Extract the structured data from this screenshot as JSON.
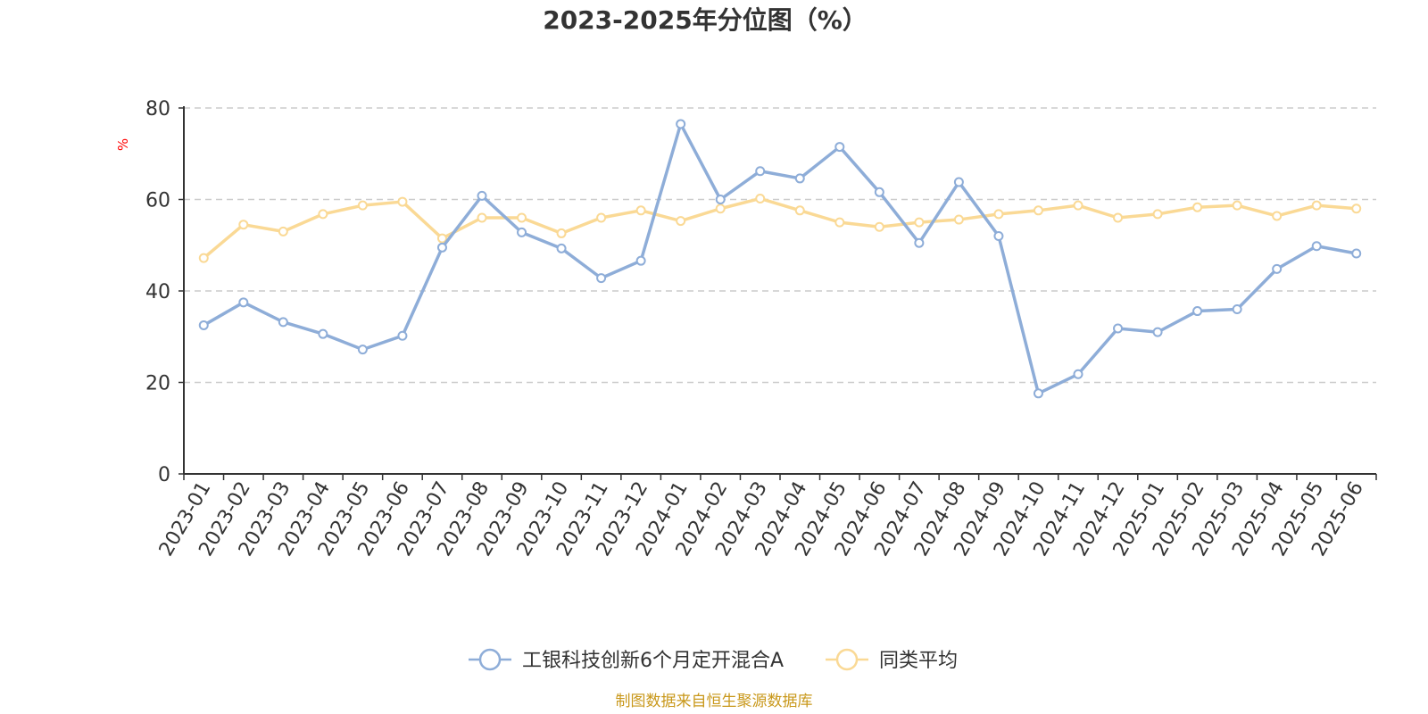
{
  "chart_data": {
    "type": "line",
    "title": "2023-2025年分位图（%）",
    "ylabel": "%",
    "xlabel": "",
    "ylim": [
      0,
      80
    ],
    "yticks": [
      "0",
      "20",
      "40",
      "60",
      "80"
    ],
    "grid": "horizontal-dashed",
    "legend_position": "bottom-center",
    "categories": [
      "2023-01",
      "2023-02",
      "2023-03",
      "2023-04",
      "2023-05",
      "2023-06",
      "2023-07",
      "2023-08",
      "2023-09",
      "2023-10",
      "2023-11",
      "2023-12",
      "2024-01",
      "2024-02",
      "2024-03",
      "2024-04",
      "2024-05",
      "2024-06",
      "2024-07",
      "2024-08",
      "2024-09",
      "2024-10",
      "2024-11",
      "2024-12",
      "2025-01",
      "2025-02",
      "2025-03",
      "2025-04",
      "2025-05",
      "2025-06"
    ],
    "series": [
      {
        "name": "工银科技创新6个月定开混合A",
        "color": "#8eadd8",
        "values": [
          32.5,
          37.5,
          33.2,
          30.6,
          27.2,
          30.2,
          49.5,
          60.8,
          52.8,
          49.3,
          42.8,
          46.6,
          76.5,
          60.0,
          66.2,
          64.6,
          71.5,
          61.6,
          50.5,
          63.8,
          52.0,
          17.6,
          21.8,
          31.8,
          31.0,
          35.6,
          36.0,
          44.8,
          49.8,
          48.2
        ]
      },
      {
        "name": "同类平均",
        "color": "#fad995",
        "values": [
          47.2,
          54.5,
          53.0,
          56.8,
          58.7,
          59.5,
          51.5,
          56.0,
          56.0,
          52.6,
          56.0,
          57.6,
          55.3,
          58.0,
          60.2,
          57.6,
          55.0,
          54.0,
          55.0,
          55.6,
          56.8,
          57.6,
          58.7,
          56.0,
          56.8,
          58.3,
          58.7,
          56.4,
          58.7,
          58.0
        ]
      }
    ]
  },
  "footer": {
    "source": "制图数据来自恒生聚源数据库"
  }
}
